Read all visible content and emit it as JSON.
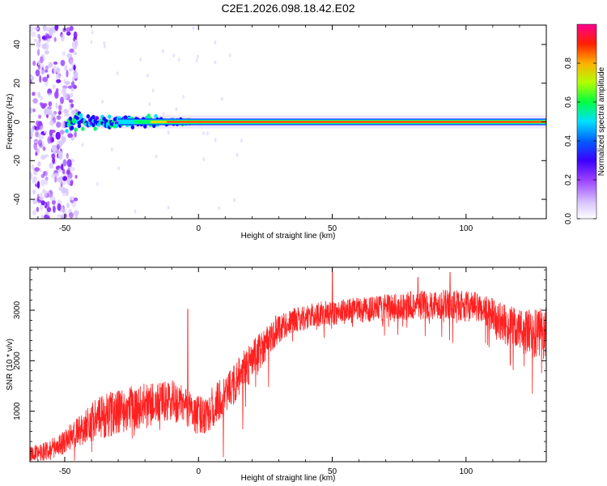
{
  "page": {
    "title": "C2E1.2026.098.18.42.E02"
  },
  "colors": {
    "snr_line": "#ff2020",
    "axis": "#000000",
    "colormap": [
      "#ffffff",
      "#d9c8ff",
      "#9a40ff",
      "#6a00ff",
      "#1010ff",
      "#00e0ff",
      "#00ff60",
      "#a0ff00",
      "#ffd000",
      "#ff2a00",
      "#ff0080"
    ]
  },
  "chart_data": [
    {
      "id": "spectrogram",
      "type": "heatmap",
      "xlabel": "Height of straight line (km)",
      "ylabel": "Frequency (Hz)",
      "xlim": [
        -63,
        130
      ],
      "ylim": [
        -50,
        50
      ],
      "xticks": [
        -50,
        0,
        50,
        100
      ],
      "yticks": [
        -40,
        -20,
        0,
        20,
        40
      ],
      "xtick_labels": [
        "-50",
        "0",
        "50",
        "100"
      ],
      "ytick_labels": [
        "-40",
        "-20",
        "0",
        "20",
        "40"
      ],
      "colorbar": {
        "label": "Normalized spectral amplitude",
        "range": [
          0.0,
          1.0
        ],
        "ticks": [
          0.0,
          0.2,
          0.4,
          0.6,
          0.8
        ],
        "tick_labels": [
          "0.0",
          "0.2",
          "0.4",
          "0.6",
          "0.8"
        ]
      },
      "features": {
        "carrier_frequency_hz": 0,
        "carrier_start_km": -45,
        "broadband_noise_range_km": [
          -63,
          -48
        ]
      }
    },
    {
      "id": "snr",
      "type": "line",
      "xlabel": "Height of straight line (km)",
      "ylabel": "SNR (10 * v/v)",
      "xlim": [
        -63,
        130
      ],
      "ylim": [
        0,
        3850
      ],
      "xticks": [
        -50,
        0,
        50,
        100
      ],
      "yticks": [
        1000,
        2000,
        3000
      ],
      "xtick_labels": [
        "-50",
        "0",
        "50",
        "100"
      ],
      "ytick_labels": [
        "1000",
        "2000",
        "3000"
      ],
      "series": [
        {
          "name": "SNR",
          "x": [
            -63,
            -55,
            -50,
            -45,
            -40,
            -35,
            -30,
            -25,
            -20,
            -15,
            -10,
            -5,
            0,
            5,
            10,
            15,
            20,
            25,
            30,
            35,
            40,
            45,
            50,
            55,
            60,
            65,
            70,
            75,
            80,
            85,
            90,
            95,
            100,
            105,
            110,
            115,
            120,
            125,
            130
          ],
          "y": [
            150,
            250,
            400,
            600,
            800,
            900,
            1000,
            1050,
            1100,
            1150,
            1200,
            1100,
            900,
            1050,
            1300,
            1650,
            2000,
            2350,
            2650,
            2780,
            2860,
            2920,
            2950,
            2980,
            3000,
            3020,
            3050,
            3070,
            3100,
            3110,
            3120,
            3100,
            3080,
            3050,
            2900,
            2700,
            2600,
            2500,
            2550
          ],
          "noise_amplitude": [
            150,
            200,
            250,
            300,
            400,
            450,
            450,
            450,
            450,
            420,
            420,
            400,
            400,
            420,
            420,
            420,
            400,
            350,
            300,
            250,
            250,
            250,
            250,
            250,
            250,
            250,
            270,
            280,
            300,
            300,
            300,
            300,
            300,
            300,
            350,
            400,
            450,
            500,
            550
          ]
        }
      ],
      "spikes": [
        {
          "x": -4,
          "y": 3020
        },
        {
          "x": 50,
          "y": 3850
        },
        {
          "x": 94,
          "y": 3750
        },
        {
          "x": 82,
          "y": 3650
        }
      ]
    }
  ]
}
